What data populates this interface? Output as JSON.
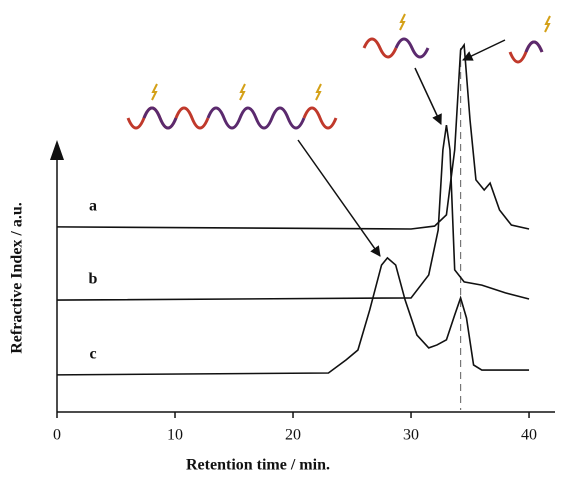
{
  "chart_data": {
    "type": "line",
    "xlabel": "Retention time / min.",
    "ylabel": "Refractive Index / a.u.",
    "xlim": [
      0,
      42.2
    ],
    "xticks": [
      0,
      10,
      20,
      30,
      40
    ],
    "ylim": [
      0,
      140
    ],
    "marker_x": 34.2,
    "series": [
      {
        "name": "a",
        "color": "#111111",
        "x": [
          0,
          30,
          32,
          33,
          33.7,
          34.2,
          34.5,
          35,
          35.5,
          36.2,
          36.7,
          37.5,
          38.5,
          40
        ],
        "values": [
          69.3,
          68.5,
          69.6,
          73.8,
          98.1,
          135.5,
          137.4,
          109.3,
          86.9,
          83.1,
          85.7,
          75.6,
          70.0,
          68.5
        ]
      },
      {
        "name": "b",
        "color": "#111111",
        "x": [
          0,
          30,
          31.5,
          32.3,
          32.7,
          33,
          33.3,
          33.7,
          34.5,
          36,
          38,
          40
        ],
        "values": [
          41.9,
          42.7,
          51.3,
          68.1,
          98.1,
          107.4,
          98.1,
          53.2,
          48.7,
          47.5,
          44.6,
          42.3
        ]
      },
      {
        "name": "c",
        "color": "#111111",
        "x": [
          0,
          23,
          24.5,
          25.5,
          26.5,
          27.5,
          28,
          28.7,
          29.5,
          30.5,
          31.5,
          32.2,
          33,
          33.7,
          34.2,
          34.7,
          35.3,
          36,
          40
        ],
        "values": [
          13.9,
          14.6,
          19.5,
          23.2,
          38.2,
          55.0,
          57.7,
          55.0,
          41.9,
          28.8,
          24.0,
          25.1,
          27.0,
          36.3,
          42.7,
          35.2,
          17.6,
          15.7,
          15.7
        ]
      }
    ]
  }
}
